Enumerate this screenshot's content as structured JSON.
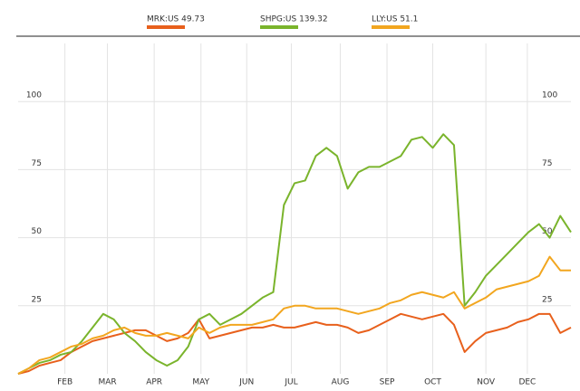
{
  "chart_data": {
    "type": "line",
    "x": [
      0,
      1,
      2,
      3,
      4,
      5,
      6,
      7,
      8,
      9,
      10,
      11,
      12,
      13,
      14,
      15,
      16,
      17,
      18,
      19,
      20,
      21,
      22,
      23,
      24,
      25,
      26,
      27,
      28,
      29,
      30,
      31,
      32,
      33,
      34,
      35,
      36,
      37,
      38,
      39,
      40,
      41,
      42,
      43,
      44,
      45,
      46,
      47,
      48,
      49,
      50,
      51,
      52
    ],
    "series": [
      {
        "name": "MRK:US 49.73",
        "color": "#e8601c",
        "values": [
          0,
          1,
          3,
          4,
          5,
          8,
          10,
          12,
          13,
          14,
          15,
          16,
          16,
          14,
          12,
          13,
          15,
          20,
          13,
          14,
          15,
          16,
          17,
          17,
          18,
          17,
          17,
          18,
          19,
          18,
          18,
          17,
          15,
          16,
          18,
          20,
          22,
          21,
          20,
          21,
          22,
          18,
          8,
          12,
          15,
          16,
          17,
          19,
          20,
          22,
          22,
          15,
          17
        ]
      },
      {
        "name": "SHPG:US 139.32",
        "color": "#7ab42c",
        "values": [
          0,
          2,
          4,
          5,
          7,
          8,
          12,
          17,
          22,
          20,
          15,
          12,
          8,
          5,
          3,
          5,
          10,
          20,
          22,
          18,
          20,
          22,
          25,
          28,
          30,
          62,
          70,
          71,
          80,
          83,
          80,
          68,
          74,
          76,
          76,
          78,
          80,
          86,
          87,
          83,
          88,
          84,
          25,
          30,
          36,
          40,
          44,
          48,
          52,
          55,
          50,
          58,
          52
        ]
      },
      {
        "name": "LLY:US 51.1",
        "color": "#f2a61f",
        "values": [
          0,
          2,
          5,
          6,
          8,
          10,
          11,
          13,
          14,
          16,
          17,
          15,
          14,
          14,
          15,
          14,
          13,
          17,
          15,
          17,
          18,
          18,
          18,
          19,
          20,
          24,
          25,
          25,
          24,
          24,
          24,
          23,
          22,
          23,
          24,
          26,
          27,
          29,
          30,
          29,
          28,
          30,
          24,
          26,
          28,
          31,
          32,
          33,
          34,
          36,
          43,
          38,
          38
        ]
      }
    ],
    "xlim": [
      0,
      52
    ],
    "xticks": [
      {
        "value": 4.4,
        "label": "FEB"
      },
      {
        "value": 8.4,
        "label": "MAR"
      },
      {
        "value": 12.8,
        "label": "APR"
      },
      {
        "value": 17.2,
        "label": "MAY"
      },
      {
        "value": 21.5,
        "label": "JUN"
      },
      {
        "value": 25.7,
        "label": "JUL"
      },
      {
        "value": 30.3,
        "label": "AUG"
      },
      {
        "value": 34.7,
        "label": "SEP"
      },
      {
        "value": 39,
        "label": "OCT"
      },
      {
        "value": 44,
        "label": "NOV"
      },
      {
        "value": 47.9,
        "label": "DEC"
      }
    ],
    "ylim": [
      0,
      124
    ],
    "yticks": [
      25,
      50,
      75,
      100
    ],
    "grid": true
  }
}
